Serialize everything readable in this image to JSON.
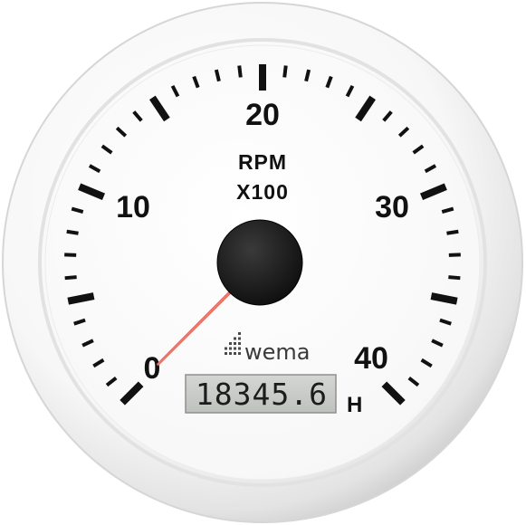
{
  "gauge": {
    "unit_line1": "RPM",
    "unit_line2": "X100",
    "scale_labels": [
      {
        "text": "0",
        "value": 0
      },
      {
        "text": "10",
        "value": 10
      },
      {
        "text": "20",
        "value": 20
      },
      {
        "text": "30",
        "value": 30
      },
      {
        "text": "40",
        "value": 40
      }
    ],
    "scale_min": 0,
    "scale_max": 40,
    "needle_value": 0,
    "brand": "wema",
    "hour_counter": "18345.6",
    "hour_unit": "H",
    "colors": {
      "face": "#ffffff",
      "bezel": "#f4f4f4",
      "ticks": "#111111",
      "needle": "#f07a6e",
      "hub": "#151515",
      "lcd_bg": "#c9cbc8"
    }
  }
}
